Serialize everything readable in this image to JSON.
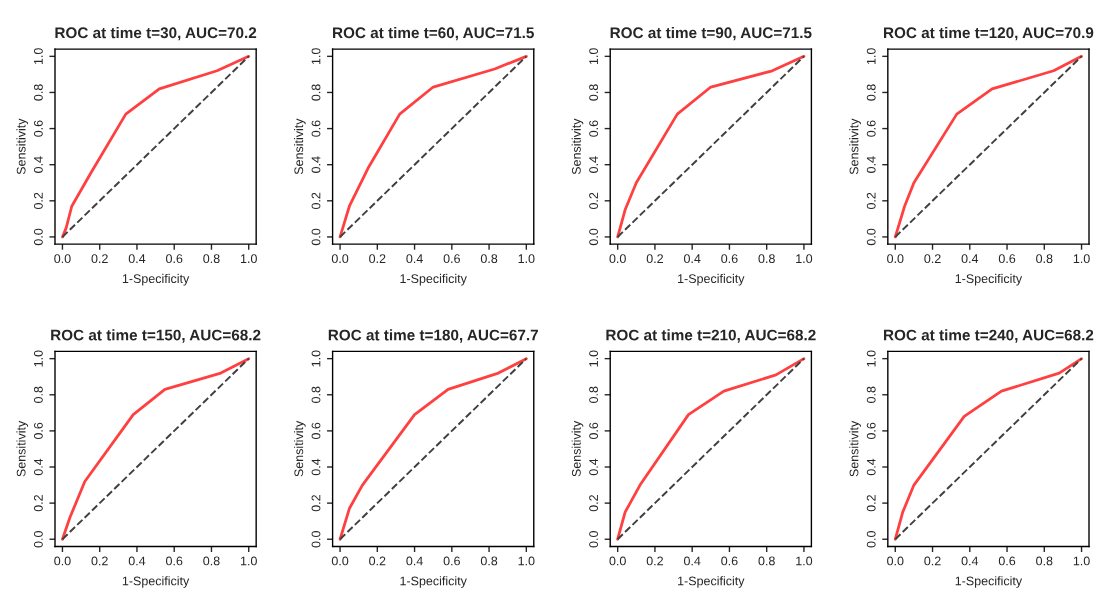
{
  "chart_data": [
    {
      "type": "line",
      "title": "ROC at time t=30, AUC=70.2",
      "xlabel": "1-Specificity",
      "ylabel": "Sensitivity",
      "xlim": [
        -0.04,
        1.04
      ],
      "ylim": [
        -0.04,
        1.04
      ],
      "xticks": [
        {
          "value": 0,
          "label": "0.0"
        },
        {
          "value": 0.2,
          "label": "0.2"
        },
        {
          "value": 0.4,
          "label": "0.4"
        },
        {
          "value": 0.6,
          "label": "0.6"
        },
        {
          "value": 0.8,
          "label": "0.8"
        },
        {
          "value": 1,
          "label": "1.0"
        }
      ],
      "yticks": [
        {
          "value": 0,
          "label": "0.0"
        },
        {
          "value": 0.2,
          "label": "0.2"
        },
        {
          "value": 0.4,
          "label": "0.4"
        },
        {
          "value": 0.6,
          "label": "0.6"
        },
        {
          "value": 0.8,
          "label": "0.8"
        },
        {
          "value": 1,
          "label": "1.0"
        }
      ],
      "grid": false,
      "legend": false,
      "series": [
        {
          "color": "#ff4040",
          "line_style": "solid",
          "x": [
            0,
            0.02,
            0.05,
            0.15,
            0.34,
            0.52,
            0.83,
            1
          ],
          "values": [
            0,
            0.05,
            0.17,
            0.35,
            0.68,
            0.82,
            0.92,
            1
          ]
        },
        {
          "color": "#404040",
          "line_style": "dashed",
          "x": [
            0,
            1
          ],
          "values": [
            0,
            1
          ]
        }
      ]
    },
    {
      "type": "line",
      "title": "ROC at time t=60, AUC=71.5",
      "xlabel": "1-Specificity",
      "ylabel": "Sensitivity",
      "xlim": [
        -0.04,
        1.04
      ],
      "ylim": [
        -0.04,
        1.04
      ],
      "xticks": [
        {
          "value": 0,
          "label": "0.0"
        },
        {
          "value": 0.2,
          "label": "0.2"
        },
        {
          "value": 0.4,
          "label": "0.4"
        },
        {
          "value": 0.6,
          "label": "0.6"
        },
        {
          "value": 0.8,
          "label": "0.8"
        },
        {
          "value": 1,
          "label": "1.0"
        }
      ],
      "yticks": [
        {
          "value": 0,
          "label": "0.0"
        },
        {
          "value": 0.2,
          "label": "0.2"
        },
        {
          "value": 0.4,
          "label": "0.4"
        },
        {
          "value": 0.6,
          "label": "0.6"
        },
        {
          "value": 0.8,
          "label": "0.8"
        },
        {
          "value": 1,
          "label": "1.0"
        }
      ],
      "grid": false,
      "legend": false,
      "series": [
        {
          "color": "#ff4040",
          "line_style": "solid",
          "x": [
            0,
            0.05,
            0.15,
            0.32,
            0.5,
            0.83,
            1
          ],
          "values": [
            0,
            0.17,
            0.38,
            0.68,
            0.83,
            0.93,
            1
          ]
        },
        {
          "color": "#404040",
          "line_style": "dashed",
          "x": [
            0,
            1
          ],
          "values": [
            0,
            1
          ]
        }
      ]
    },
    {
      "type": "line",
      "title": "ROC at time t=90, AUC=71.5",
      "xlabel": "1-Specificity",
      "ylabel": "Sensitivity",
      "xlim": [
        -0.04,
        1.04
      ],
      "ylim": [
        -0.04,
        1.04
      ],
      "xticks": [
        {
          "value": 0,
          "label": "0.0"
        },
        {
          "value": 0.2,
          "label": "0.2"
        },
        {
          "value": 0.4,
          "label": "0.4"
        },
        {
          "value": 0.6,
          "label": "0.6"
        },
        {
          "value": 0.8,
          "label": "0.8"
        },
        {
          "value": 1,
          "label": "1.0"
        }
      ],
      "yticks": [
        {
          "value": 0,
          "label": "0.0"
        },
        {
          "value": 0.2,
          "label": "0.2"
        },
        {
          "value": 0.4,
          "label": "0.4"
        },
        {
          "value": 0.6,
          "label": "0.6"
        },
        {
          "value": 0.8,
          "label": "0.8"
        },
        {
          "value": 1,
          "label": "1.0"
        }
      ],
      "grid": false,
      "legend": false,
      "series": [
        {
          "color": "#ff4040",
          "line_style": "solid",
          "x": [
            0,
            0.04,
            0.1,
            0.32,
            0.5,
            0.83,
            1
          ],
          "values": [
            0,
            0.15,
            0.3,
            0.68,
            0.83,
            0.92,
            1
          ]
        },
        {
          "color": "#404040",
          "line_style": "dashed",
          "x": [
            0,
            1
          ],
          "values": [
            0,
            1
          ]
        }
      ]
    },
    {
      "type": "line",
      "title": "ROC at time t=120, AUC=70.9",
      "xlabel": "1-Specificity",
      "ylabel": "Sensitivity",
      "xlim": [
        -0.04,
        1.04
      ],
      "ylim": [
        -0.04,
        1.04
      ],
      "xticks": [
        {
          "value": 0,
          "label": "0.0"
        },
        {
          "value": 0.2,
          "label": "0.2"
        },
        {
          "value": 0.4,
          "label": "0.4"
        },
        {
          "value": 0.6,
          "label": "0.6"
        },
        {
          "value": 0.8,
          "label": "0.8"
        },
        {
          "value": 1,
          "label": "1.0"
        }
      ],
      "yticks": [
        {
          "value": 0,
          "label": "0.0"
        },
        {
          "value": 0.2,
          "label": "0.2"
        },
        {
          "value": 0.4,
          "label": "0.4"
        },
        {
          "value": 0.6,
          "label": "0.6"
        },
        {
          "value": 0.8,
          "label": "0.8"
        },
        {
          "value": 1,
          "label": "1.0"
        }
      ],
      "grid": false,
      "legend": false,
      "series": [
        {
          "color": "#ff4040",
          "line_style": "solid",
          "x": [
            0,
            0.05,
            0.1,
            0.33,
            0.52,
            0.85,
            1
          ],
          "values": [
            0,
            0.17,
            0.3,
            0.68,
            0.82,
            0.92,
            1
          ]
        },
        {
          "color": "#404040",
          "line_style": "dashed",
          "x": [
            0,
            1
          ],
          "values": [
            0,
            1
          ]
        }
      ]
    },
    {
      "type": "line",
      "title": "ROC at time t=150, AUC=68.2",
      "xlabel": "1-Specificity",
      "ylabel": "Sensitivity",
      "xlim": [
        -0.04,
        1.04
      ],
      "ylim": [
        -0.04,
        1.04
      ],
      "xticks": [
        {
          "value": 0,
          "label": "0.0"
        },
        {
          "value": 0.2,
          "label": "0.2"
        },
        {
          "value": 0.4,
          "label": "0.4"
        },
        {
          "value": 0.6,
          "label": "0.6"
        },
        {
          "value": 0.8,
          "label": "0.8"
        },
        {
          "value": 1,
          "label": "1.0"
        }
      ],
      "yticks": [
        {
          "value": 0,
          "label": "0.0"
        },
        {
          "value": 0.2,
          "label": "0.2"
        },
        {
          "value": 0.4,
          "label": "0.4"
        },
        {
          "value": 0.6,
          "label": "0.6"
        },
        {
          "value": 0.8,
          "label": "0.8"
        },
        {
          "value": 1,
          "label": "1.0"
        }
      ],
      "grid": false,
      "legend": false,
      "series": [
        {
          "color": "#ff4040",
          "line_style": "solid",
          "x": [
            0,
            0.04,
            0.12,
            0.38,
            0.55,
            0.85,
            1
          ],
          "values": [
            0,
            0.12,
            0.32,
            0.69,
            0.83,
            0.92,
            1
          ]
        },
        {
          "color": "#404040",
          "line_style": "dashed",
          "x": [
            0,
            1
          ],
          "values": [
            0,
            1
          ]
        }
      ]
    },
    {
      "type": "line",
      "title": "ROC at time t=180, AUC=67.7",
      "xlabel": "1-Specificity",
      "ylabel": "Sensitivity",
      "xlim": [
        -0.04,
        1.04
      ],
      "ylim": [
        -0.04,
        1.04
      ],
      "xticks": [
        {
          "value": 0,
          "label": "0.0"
        },
        {
          "value": 0.2,
          "label": "0.2"
        },
        {
          "value": 0.4,
          "label": "0.4"
        },
        {
          "value": 0.6,
          "label": "0.6"
        },
        {
          "value": 0.8,
          "label": "0.8"
        },
        {
          "value": 1,
          "label": "1.0"
        }
      ],
      "yticks": [
        {
          "value": 0,
          "label": "0.0"
        },
        {
          "value": 0.2,
          "label": "0.2"
        },
        {
          "value": 0.4,
          "label": "0.4"
        },
        {
          "value": 0.6,
          "label": "0.6"
        },
        {
          "value": 0.8,
          "label": "0.8"
        },
        {
          "value": 1,
          "label": "1.0"
        }
      ],
      "grid": false,
      "legend": false,
      "series": [
        {
          "color": "#ff4040",
          "line_style": "solid",
          "x": [
            0,
            0.05,
            0.12,
            0.4,
            0.58,
            0.85,
            1
          ],
          "values": [
            0,
            0.17,
            0.3,
            0.69,
            0.83,
            0.92,
            1
          ]
        },
        {
          "color": "#404040",
          "line_style": "dashed",
          "x": [
            0,
            1
          ],
          "values": [
            0,
            1
          ]
        }
      ]
    },
    {
      "type": "line",
      "title": "ROC at time t=210, AUC=68.2",
      "xlabel": "1-Specificity",
      "ylabel": "Sensitivity",
      "xlim": [
        -0.04,
        1.04
      ],
      "ylim": [
        -0.04,
        1.04
      ],
      "xticks": [
        {
          "value": 0,
          "label": "0.0"
        },
        {
          "value": 0.2,
          "label": "0.2"
        },
        {
          "value": 0.4,
          "label": "0.4"
        },
        {
          "value": 0.6,
          "label": "0.6"
        },
        {
          "value": 0.8,
          "label": "0.8"
        },
        {
          "value": 1,
          "label": "1.0"
        }
      ],
      "yticks": [
        {
          "value": 0,
          "label": "0.0"
        },
        {
          "value": 0.2,
          "label": "0.2"
        },
        {
          "value": 0.4,
          "label": "0.4"
        },
        {
          "value": 0.6,
          "label": "0.6"
        },
        {
          "value": 0.8,
          "label": "0.8"
        },
        {
          "value": 1,
          "label": "1.0"
        }
      ],
      "grid": false,
      "legend": false,
      "series": [
        {
          "color": "#ff4040",
          "line_style": "solid",
          "x": [
            0,
            0.04,
            0.12,
            0.38,
            0.57,
            0.85,
            1
          ],
          "values": [
            0,
            0.15,
            0.3,
            0.69,
            0.82,
            0.91,
            1
          ]
        },
        {
          "color": "#404040",
          "line_style": "dashed",
          "x": [
            0,
            1
          ],
          "values": [
            0,
            1
          ]
        }
      ]
    },
    {
      "type": "line",
      "title": "ROC at time t=240, AUC=68.2",
      "xlabel": "1-Specificity",
      "ylabel": "Sensitivity",
      "xlim": [
        -0.04,
        1.04
      ],
      "ylim": [
        -0.04,
        1.04
      ],
      "xticks": [
        {
          "value": 0,
          "label": "0.0"
        },
        {
          "value": 0.2,
          "label": "0.2"
        },
        {
          "value": 0.4,
          "label": "0.4"
        },
        {
          "value": 0.6,
          "label": "0.6"
        },
        {
          "value": 0.8,
          "label": "0.8"
        },
        {
          "value": 1,
          "label": "1.0"
        }
      ],
      "yticks": [
        {
          "value": 0,
          "label": "0.0"
        },
        {
          "value": 0.2,
          "label": "0.2"
        },
        {
          "value": 0.4,
          "label": "0.4"
        },
        {
          "value": 0.6,
          "label": "0.6"
        },
        {
          "value": 0.8,
          "label": "0.8"
        },
        {
          "value": 1,
          "label": "1.0"
        }
      ],
      "grid": false,
      "legend": false,
      "series": [
        {
          "color": "#ff4040",
          "line_style": "solid",
          "x": [
            0,
            0.04,
            0.1,
            0.37,
            0.57,
            0.88,
            1
          ],
          "values": [
            0,
            0.15,
            0.3,
            0.68,
            0.82,
            0.92,
            1
          ]
        },
        {
          "color": "#404040",
          "line_style": "dashed",
          "x": [
            0,
            1
          ],
          "values": [
            0,
            1
          ]
        }
      ]
    }
  ]
}
